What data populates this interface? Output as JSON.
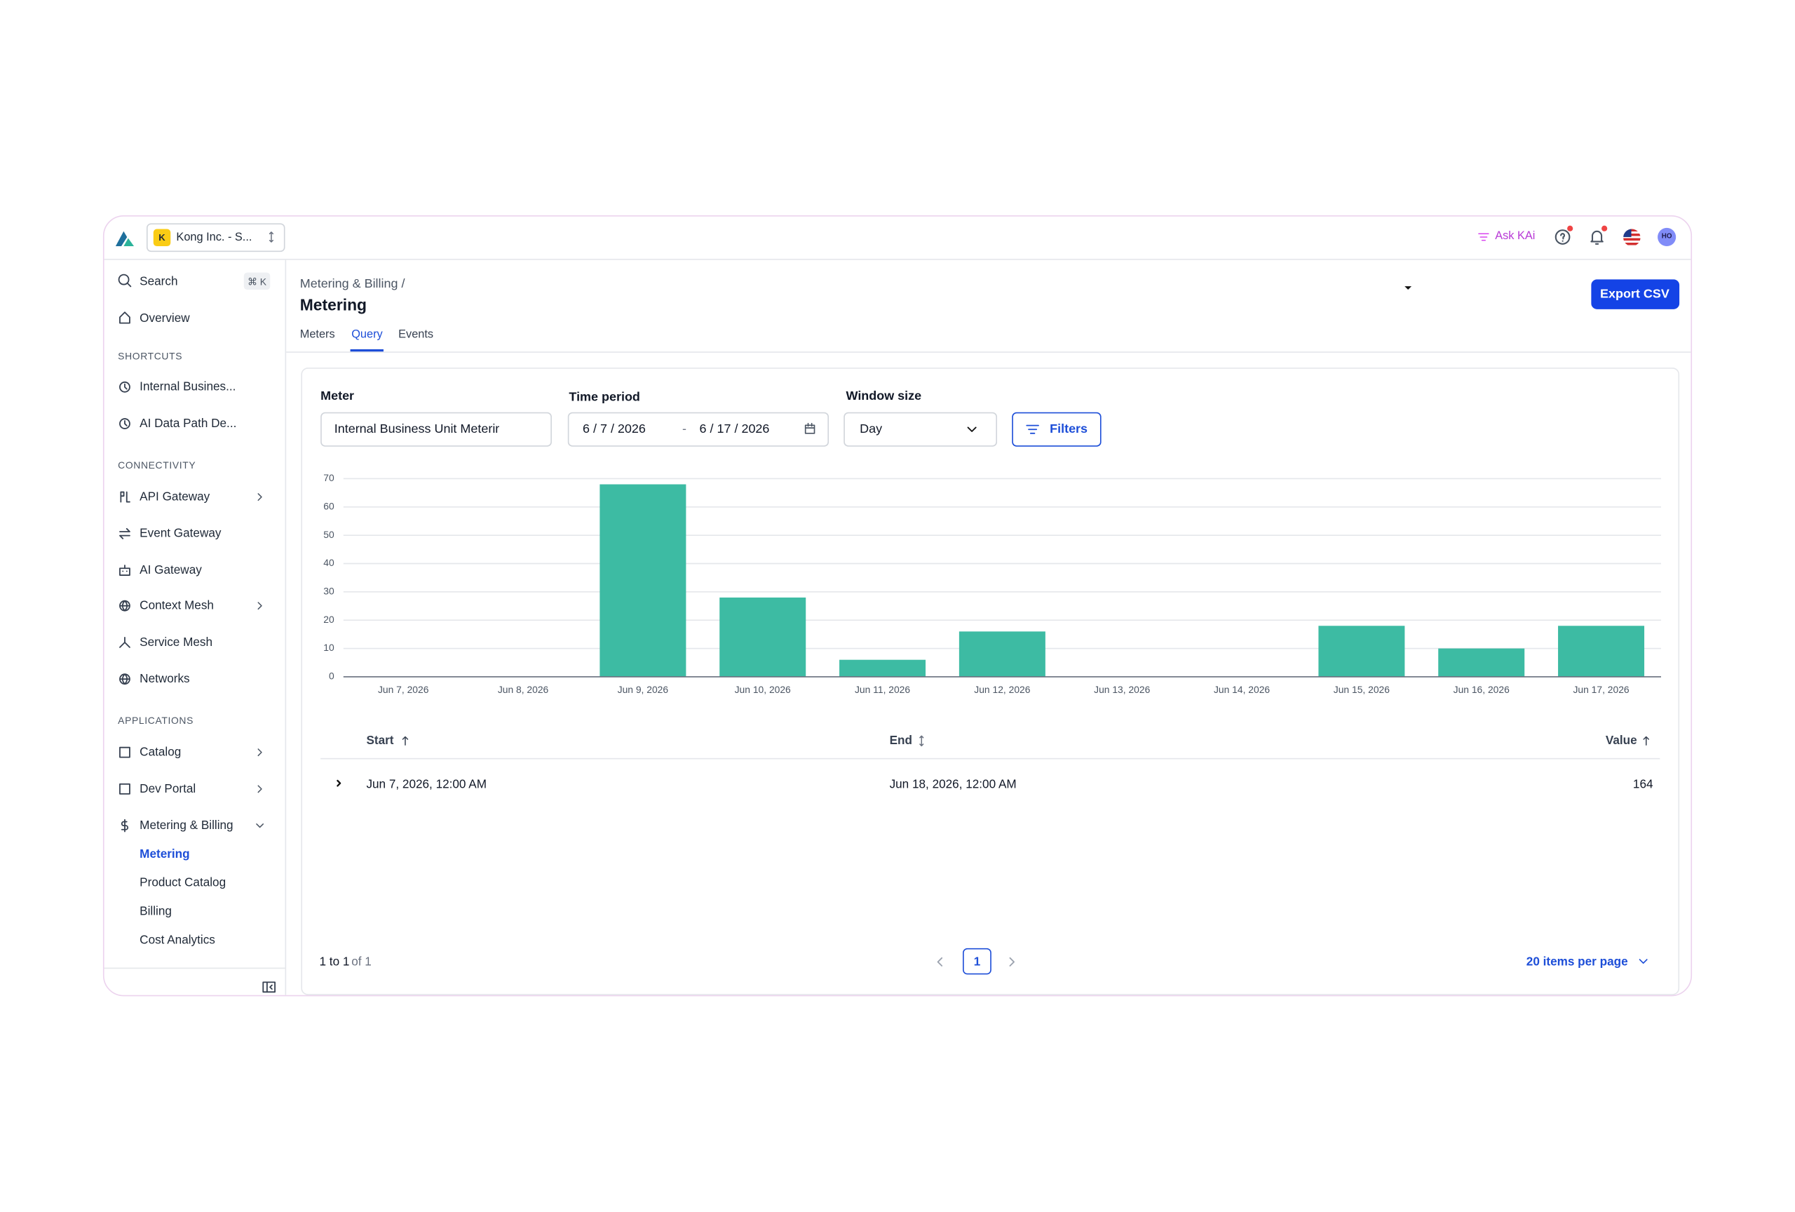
{
  "header": {
    "org_badge": "K",
    "org": "Kong Inc. - S...",
    "ask_ai": "Ask KAi",
    "avatar": "HO"
  },
  "sidebar": {
    "search": "Search",
    "search_shortcut": "⌘ K",
    "overview": "Overview",
    "shortcuts": {
      "title": "SHORTCUTS",
      "items": [
        "Internal Busines...",
        "AI Data Path De..."
      ]
    },
    "connectivity": {
      "title": "CONNECTIVITY",
      "items": [
        "API Gateway",
        "Event Gateway",
        "AI Gateway",
        "Context Mesh",
        "Service Mesh",
        "Networks"
      ]
    },
    "applications": {
      "title": "APPLICATIONS",
      "items": [
        "Catalog",
        "Dev Portal",
        "Metering & Billing"
      ],
      "subitems": [
        "Metering",
        "Product Catalog",
        "Billing",
        "Cost Analytics"
      ]
    }
  },
  "page": {
    "breadcrumb": "Metering & Billing /",
    "title": "Metering",
    "export": "Export CSV",
    "tabs": [
      "Meters",
      "Query",
      "Events"
    ]
  },
  "query": {
    "meter_label": "Meter",
    "meter_value": "Internal Business Unit Meterir",
    "time_label": "Time period",
    "start_date": "6 / 7 / 2026",
    "date_sep": "-",
    "end_date": "6 / 17 / 2026",
    "window_label": "Window size",
    "window_value": "Day",
    "filters": "Filters"
  },
  "chart_data": {
    "type": "bar",
    "categories": [
      "Jun 7, 2026",
      "Jun 8, 2026",
      "Jun 9, 2026",
      "Jun 10, 2026",
      "Jun 11, 2026",
      "Jun 12, 2026",
      "Jun 13, 2026",
      "Jun 14, 2026",
      "Jun 15, 2026",
      "Jun 16, 2026",
      "Jun 17, 2026"
    ],
    "values": [
      0,
      0,
      68,
      28,
      6,
      16,
      0,
      0,
      18,
      10,
      18
    ],
    "color": "#3dbba3",
    "ylim": [
      0,
      70
    ],
    "yticks": [
      0,
      10,
      20,
      30,
      40,
      50,
      60,
      70
    ],
    "grid": true
  },
  "table": {
    "columns": [
      "Start",
      "End",
      "Value"
    ],
    "rows": [
      {
        "start": "Jun 7, 2026, 12:00 AM",
        "end": "Jun 18, 2026, 12:00 AM",
        "value": 164
      }
    ]
  },
  "pagination": {
    "range": "1 to 1",
    "total": "of 1",
    "page": 1,
    "per_page": "20 items per page"
  }
}
